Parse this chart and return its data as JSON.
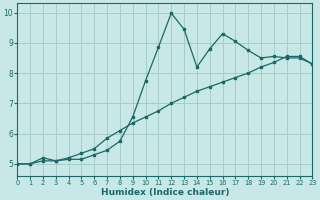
{
  "xlabel": "Humidex (Indice chaleur)",
  "bg_color": "#c8e8e8",
  "grid_color": "#a8cccc",
  "line_color": "#1a6868",
  "xmin": 0,
  "xmax": 23,
  "ymin": 4.6,
  "ymax": 10.3,
  "line1_x": [
    0,
    1,
    2,
    3,
    4,
    5,
    6,
    7,
    8,
    9,
    10,
    11,
    12,
    13,
    14,
    15,
    16,
    17,
    18,
    19,
    20,
    21,
    22,
    23
  ],
  "line1_y": [
    5.0,
    5.0,
    5.2,
    5.1,
    5.15,
    5.15,
    5.3,
    5.45,
    5.75,
    6.55,
    7.75,
    8.85,
    9.98,
    9.45,
    8.2,
    8.8,
    9.3,
    9.05,
    8.75,
    8.5,
    8.55,
    8.5,
    8.5,
    8.3
  ],
  "line2_x": [
    0,
    1,
    2,
    3,
    4,
    5,
    6,
    7,
    8,
    9,
    10,
    11,
    12,
    13,
    14,
    15,
    16,
    17,
    18,
    19,
    20,
    21,
    22,
    23
  ],
  "line2_y": [
    5.0,
    5.0,
    5.1,
    5.1,
    5.2,
    5.35,
    5.5,
    5.85,
    6.1,
    6.35,
    6.55,
    6.75,
    7.0,
    7.2,
    7.4,
    7.55,
    7.7,
    7.85,
    8.0,
    8.2,
    8.35,
    8.55,
    8.55,
    8.3
  ],
  "xticks": [
    0,
    1,
    2,
    3,
    4,
    5,
    6,
    7,
    8,
    9,
    10,
    11,
    12,
    13,
    14,
    15,
    16,
    17,
    18,
    19,
    20,
    21,
    22,
    23
  ],
  "yticks": [
    5,
    6,
    7,
    8,
    9,
    10
  ]
}
